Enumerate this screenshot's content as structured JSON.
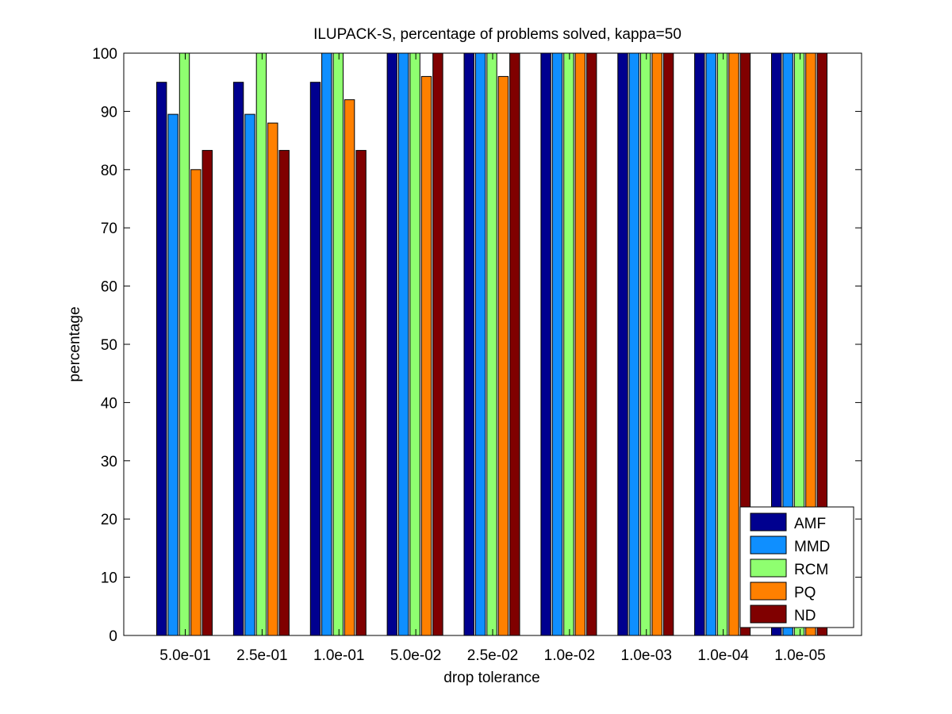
{
  "chart_data": {
    "type": "bar",
    "title": "ILUPACK-S, percentage of problems solved, kappa=50",
    "xlabel": "drop tolerance",
    "ylabel": "percentage",
    "ylim": [
      0,
      100
    ],
    "yticks": [
      0,
      10,
      20,
      30,
      40,
      50,
      60,
      70,
      80,
      90,
      100
    ],
    "grid": false,
    "legend_position": "bottom-right",
    "categories": [
      "5.0e-01",
      "2.5e-01",
      "1.0e-01",
      "5.0e-02",
      "2.5e-02",
      "1.0e-02",
      "1.0e-03",
      "1.0e-04",
      "1.0e-05"
    ],
    "series": [
      {
        "name": "AMF",
        "color": "#00008f",
        "values": [
          95,
          95,
          95,
          100,
          100,
          100,
          100,
          100,
          100
        ]
      },
      {
        "name": "MMD",
        "color": "#0f8fff",
        "values": [
          89.5,
          89.5,
          100,
          100,
          100,
          100,
          100,
          100,
          100
        ]
      },
      {
        "name": "RCM",
        "color": "#8fff70",
        "values": [
          100,
          100,
          100,
          100,
          100,
          100,
          100,
          100,
          100
        ]
      },
      {
        "name": "PQ",
        "color": "#ff8000",
        "values": [
          80,
          88,
          92,
          96,
          96,
          100,
          100,
          100,
          100
        ]
      },
      {
        "name": "ND",
        "color": "#800000",
        "values": [
          83.3,
          83.3,
          83.3,
          100,
          100,
          100,
          100,
          100,
          100
        ]
      }
    ]
  }
}
